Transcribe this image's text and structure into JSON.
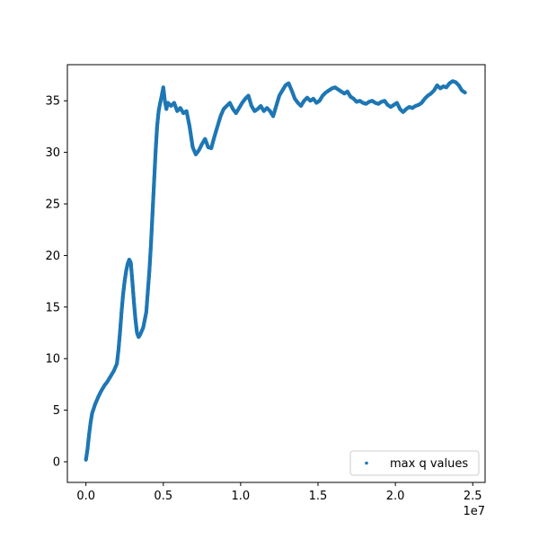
{
  "chart_data": {
    "type": "scatter",
    "title": "",
    "xlabel": "",
    "ylabel": "",
    "x_offset_label": "1e7",
    "xlim": [
      -1200000,
      25800000
    ],
    "ylim": [
      -2.0,
      38.5
    ],
    "xticks": [
      0,
      5000000,
      10000000,
      15000000,
      20000000,
      25000000
    ],
    "xtick_labels": [
      "0.0",
      "0.5",
      "1.0",
      "1.5",
      "2.0",
      "2.5"
    ],
    "yticks": [
      0,
      5,
      10,
      15,
      20,
      25,
      30,
      35
    ],
    "ytick_labels": [
      "0",
      "5",
      "10",
      "15",
      "20",
      "25",
      "30",
      "35"
    ],
    "grid": false,
    "legend": {
      "position": "lower right",
      "entries": [
        "max q values"
      ]
    },
    "series": [
      {
        "name": "max q values",
        "color": "#1f77b4",
        "points": [
          [
            0,
            0.2
          ],
          [
            100000,
            1.2
          ],
          [
            200000,
            2.6
          ],
          [
            300000,
            3.8
          ],
          [
            400000,
            4.7
          ],
          [
            600000,
            5.6
          ],
          [
            800000,
            6.3
          ],
          [
            1000000,
            6.9
          ],
          [
            1200000,
            7.4
          ],
          [
            1400000,
            7.8
          ],
          [
            1600000,
            8.3
          ],
          [
            1800000,
            8.8
          ],
          [
            2000000,
            9.5
          ],
          [
            2100000,
            10.8
          ],
          [
            2200000,
            12.5
          ],
          [
            2300000,
            14.5
          ],
          [
            2400000,
            16.2
          ],
          [
            2500000,
            17.5
          ],
          [
            2600000,
            18.5
          ],
          [
            2700000,
            19.2
          ],
          [
            2800000,
            19.6
          ],
          [
            2900000,
            19.3
          ],
          [
            3000000,
            17.5
          ],
          [
            3100000,
            15.5
          ],
          [
            3200000,
            13.8
          ],
          [
            3300000,
            12.5
          ],
          [
            3400000,
            12.1
          ],
          [
            3500000,
            12.3
          ],
          [
            3700000,
            13.0
          ],
          [
            3900000,
            14.5
          ],
          [
            4000000,
            16.5
          ],
          [
            4100000,
            18.5
          ],
          [
            4200000,
            21.0
          ],
          [
            4300000,
            24.0
          ],
          [
            4400000,
            27.0
          ],
          [
            4500000,
            30.0
          ],
          [
            4600000,
            32.5
          ],
          [
            4700000,
            34.0
          ],
          [
            4800000,
            34.8
          ],
          [
            4900000,
            35.5
          ],
          [
            5000000,
            36.3
          ],
          [
            5100000,
            35.0
          ],
          [
            5200000,
            34.2
          ],
          [
            5300000,
            34.8
          ],
          [
            5500000,
            34.5
          ],
          [
            5700000,
            34.8
          ],
          [
            5900000,
            34.0
          ],
          [
            6100000,
            34.3
          ],
          [
            6300000,
            33.8
          ],
          [
            6500000,
            34.0
          ],
          [
            6700000,
            32.5
          ],
          [
            6900000,
            30.5
          ],
          [
            7100000,
            29.8
          ],
          [
            7300000,
            30.2
          ],
          [
            7500000,
            30.8
          ],
          [
            7700000,
            31.3
          ],
          [
            7900000,
            30.5
          ],
          [
            8100000,
            30.4
          ],
          [
            8300000,
            31.5
          ],
          [
            8500000,
            32.5
          ],
          [
            8700000,
            33.5
          ],
          [
            8900000,
            34.2
          ],
          [
            9100000,
            34.5
          ],
          [
            9300000,
            34.8
          ],
          [
            9500000,
            34.2
          ],
          [
            9700000,
            33.8
          ],
          [
            9900000,
            34.3
          ],
          [
            10100000,
            34.8
          ],
          [
            10300000,
            35.2
          ],
          [
            10500000,
            35.5
          ],
          [
            10700000,
            34.5
          ],
          [
            10900000,
            34.0
          ],
          [
            11100000,
            34.2
          ],
          [
            11300000,
            34.5
          ],
          [
            11500000,
            34.0
          ],
          [
            11700000,
            34.3
          ],
          [
            11900000,
            34.0
          ],
          [
            12100000,
            33.5
          ],
          [
            12300000,
            34.5
          ],
          [
            12500000,
            35.5
          ],
          [
            12700000,
            36.0
          ],
          [
            12900000,
            36.5
          ],
          [
            13100000,
            36.7
          ],
          [
            13300000,
            36.0
          ],
          [
            13500000,
            35.2
          ],
          [
            13700000,
            34.8
          ],
          [
            13900000,
            34.5
          ],
          [
            14100000,
            35.0
          ],
          [
            14300000,
            35.3
          ],
          [
            14500000,
            35.0
          ],
          [
            14700000,
            35.2
          ],
          [
            14900000,
            34.8
          ],
          [
            15100000,
            35.0
          ],
          [
            15300000,
            35.5
          ],
          [
            15500000,
            35.8
          ],
          [
            15700000,
            36.0
          ],
          [
            15900000,
            36.2
          ],
          [
            16100000,
            36.3
          ],
          [
            16300000,
            36.1
          ],
          [
            16500000,
            35.9
          ],
          [
            16700000,
            35.7
          ],
          [
            16900000,
            35.9
          ],
          [
            17100000,
            35.4
          ],
          [
            17300000,
            35.2
          ],
          [
            17500000,
            34.9
          ],
          [
            17700000,
            35.0
          ],
          [
            17900000,
            34.8
          ],
          [
            18100000,
            34.7
          ],
          [
            18300000,
            34.9
          ],
          [
            18500000,
            35.0
          ],
          [
            18700000,
            34.8
          ],
          [
            18900000,
            34.7
          ],
          [
            19100000,
            34.9
          ],
          [
            19300000,
            35.0
          ],
          [
            19500000,
            34.6
          ],
          [
            19700000,
            34.4
          ],
          [
            19900000,
            34.6
          ],
          [
            20100000,
            34.8
          ],
          [
            20300000,
            34.2
          ],
          [
            20500000,
            33.9
          ],
          [
            20700000,
            34.2
          ],
          [
            20900000,
            34.4
          ],
          [
            21100000,
            34.3
          ],
          [
            21300000,
            34.5
          ],
          [
            21500000,
            34.6
          ],
          [
            21700000,
            34.8
          ],
          [
            21900000,
            35.2
          ],
          [
            22100000,
            35.5
          ],
          [
            22300000,
            35.7
          ],
          [
            22500000,
            36.0
          ],
          [
            22700000,
            36.5
          ],
          [
            22900000,
            36.2
          ],
          [
            23100000,
            36.4
          ],
          [
            23300000,
            36.3
          ],
          [
            23500000,
            36.7
          ],
          [
            23700000,
            36.9
          ],
          [
            23900000,
            36.8
          ],
          [
            24100000,
            36.5
          ],
          [
            24300000,
            36.0
          ],
          [
            24500000,
            35.8
          ]
        ]
      }
    ]
  }
}
